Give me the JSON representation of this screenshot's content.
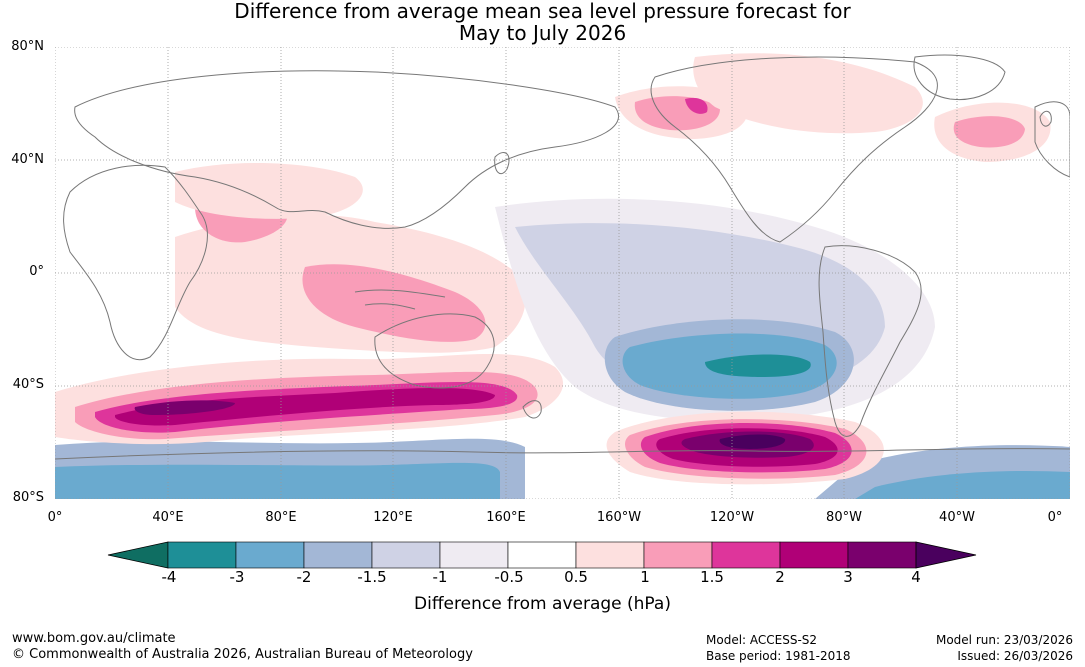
{
  "title": {
    "line1": "Difference from average mean sea level pressure forecast for",
    "line2": "May to July 2026"
  },
  "map": {
    "lat_labels": [
      "80°N",
      "40°N",
      "0°",
      "40°S",
      "80°S"
    ],
    "lon_labels": [
      "0°",
      "40°E",
      "80°E",
      "120°E",
      "160°E",
      "160°W",
      "120°W",
      "80°W",
      "40°W",
      "0°"
    ],
    "land_color": "#ffffff",
    "coast_color": "#777777",
    "grid_color": "#999999"
  },
  "legend": {
    "title": "Difference from average (hPa)",
    "ticks": [
      "-4",
      "-3",
      "-2",
      "-1.5",
      "-1",
      "-0.5",
      "0.5",
      "1",
      "1.5",
      "2",
      "3",
      "4"
    ],
    "colors": [
      "#0f6e62",
      "#1e8f97",
      "#6aaacf",
      "#a3b7d6",
      "#cfd2e5",
      "#efebf2",
      "#ffffff",
      "#fde0df",
      "#f99db8",
      "#de359b",
      "#b00077",
      "#7a006d",
      "#4a005e"
    ]
  },
  "footer": {
    "website": "www.bom.gov.au/climate",
    "copyright": "© Commonwealth of Australia 2026, Australian Bureau of Meteorology",
    "model": "Model: ACCESS-S2",
    "base_period": "Base period: 1981-2018",
    "model_run": "Model run: 23/03/2026",
    "issued": "Issued: 26/03/2026"
  }
}
